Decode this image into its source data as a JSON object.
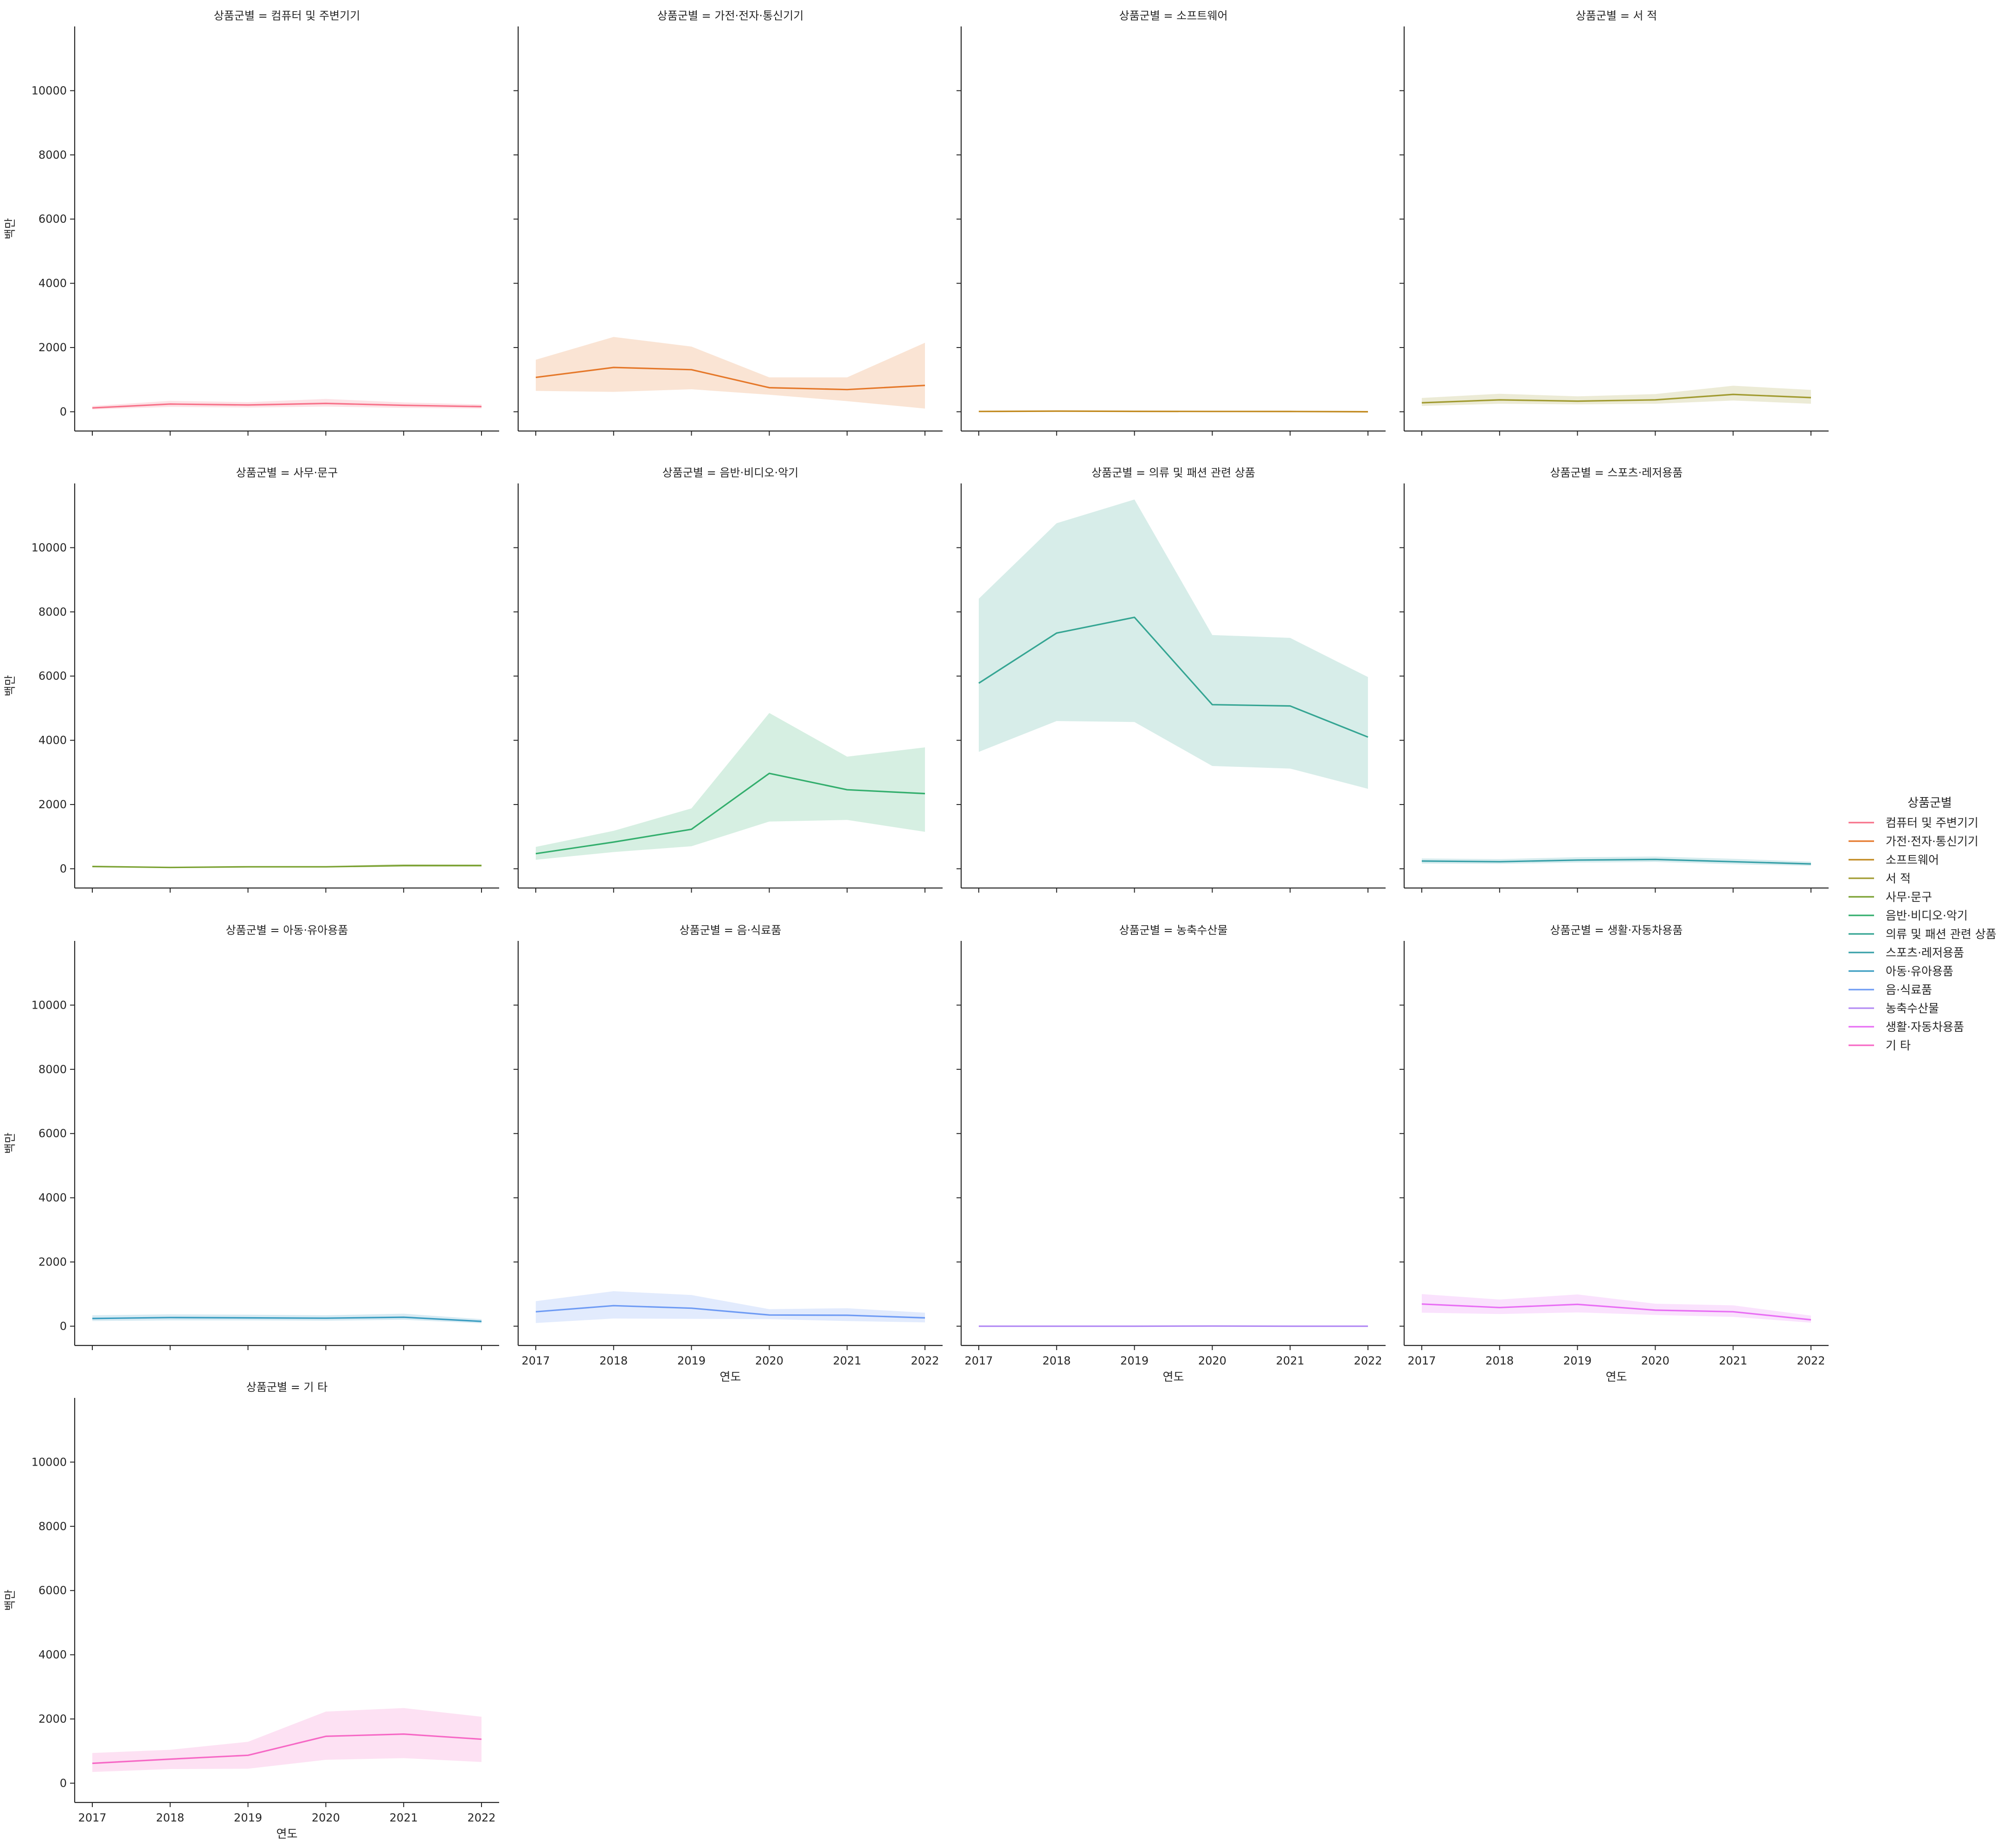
{
  "chart_data": {
    "type": "line",
    "facet_variable": "상품군별",
    "x": [
      2017,
      2018,
      2019,
      2020,
      2021,
      2022
    ],
    "xlabel": "연도",
    "ylabel": "백만",
    "ylim": [
      -600,
      12000
    ],
    "yticks": [
      0,
      2000,
      4000,
      6000,
      8000,
      10000
    ],
    "legend": {
      "title": "상품군별",
      "position": "right"
    },
    "facets": [
      {
        "title": "상품군별 = 컴퓨터 및 주변기기",
        "name": "컴퓨터 및 주변기기",
        "color": "#f77189",
        "values": [
          120,
          240,
          210,
          260,
          200,
          160
        ],
        "lower": [
          70,
          150,
          130,
          160,
          120,
          100
        ],
        "upper": [
          180,
          340,
          300,
          400,
          290,
          230
        ]
      },
      {
        "title": "상품군별 = 가전·전자·통신기기",
        "name": "가전·전자·통신기기",
        "color": "#e5782a",
        "values": [
          1070,
          1380,
          1310,
          750,
          690,
          820
        ],
        "lower": [
          650,
          620,
          700,
          530,
          330,
          100
        ],
        "upper": [
          1620,
          2330,
          2030,
          1070,
          1070,
          2150
        ]
      },
      {
        "title": "상품군별 = 소프트웨어",
        "name": "소프트웨어",
        "color": "#c1891e",
        "values": [
          10,
          20,
          12,
          10,
          8,
          0
        ],
        "lower": [
          4,
          10,
          6,
          5,
          3,
          -2
        ],
        "upper": [
          18,
          30,
          20,
          16,
          14,
          4
        ]
      },
      {
        "title": "상품군별 = 서 적",
        "name": "서 적",
        "color": "#a19b31",
        "values": [
          280,
          370,
          330,
          370,
          540,
          440
        ],
        "lower": [
          180,
          250,
          230,
          250,
          350,
          250
        ],
        "upper": [
          430,
          560,
          480,
          550,
          810,
          680
        ]
      },
      {
        "title": "상품군별 = 사무·문구",
        "name": "사무·문구",
        "color": "#7aa131",
        "values": [
          70,
          40,
          60,
          60,
          100,
          100
        ],
        "lower": [
          45,
          25,
          40,
          40,
          60,
          65
        ],
        "upper": [
          95,
          60,
          85,
          85,
          150,
          140
        ]
      },
      {
        "title": "상품군별 = 음반·비디오·악기",
        "name": "음반·비디오·악기",
        "color": "#33ae6d",
        "values": [
          470,
          830,
          1230,
          2970,
          2460,
          2340
        ],
        "lower": [
          280,
          520,
          700,
          1470,
          1520,
          1150
        ],
        "upper": [
          680,
          1180,
          1880,
          4850,
          3490,
          3780
        ]
      },
      {
        "title": "상품군별 = 의류 및 패션 관련 상품",
        "name": "의류 및 패션 관련 상품",
        "color": "#35a593",
        "values": [
          5780,
          7340,
          7830,
          5110,
          5070,
          4100
        ],
        "lower": [
          3640,
          4600,
          4570,
          3200,
          3120,
          2490
        ],
        "upper": [
          8410,
          10760,
          11500,
          7280,
          7190,
          5970
        ]
      },
      {
        "title": "상품군별 = 스포츠·레저용품",
        "name": "스포츠·레저용품",
        "color": "#37a0a8",
        "values": [
          240,
          220,
          270,
          290,
          220,
          150
        ],
        "lower": [
          160,
          150,
          190,
          210,
          140,
          90
        ],
        "upper": [
          320,
          300,
          360,
          380,
          310,
          220
        ]
      },
      {
        "title": "상품군별 = 아동·유아용품",
        "name": "아동·유아용품",
        "color": "#3a9dc1",
        "values": [
          240,
          270,
          260,
          250,
          280,
          150
        ],
        "lower": [
          160,
          180,
          180,
          170,
          200,
          90
        ],
        "upper": [
          340,
          370,
          360,
          340,
          390,
          220
        ]
      },
      {
        "title": "상품군별 = 음·식료품",
        "name": "음·식료품",
        "color": "#6e9bf4",
        "values": [
          450,
          640,
          560,
          350,
          340,
          260
        ],
        "lower": [
          100,
          240,
          230,
          220,
          160,
          120
        ],
        "upper": [
          780,
          1090,
          970,
          530,
          560,
          420
        ]
      },
      {
        "title": "상품군별 = 농축수산물",
        "name": "농축수산물",
        "color": "#b28af4",
        "values": [
          0,
          0,
          0,
          5,
          0,
          0
        ],
        "lower": [
          -3,
          -3,
          -3,
          2,
          -3,
          -3
        ],
        "upper": [
          3,
          3,
          3,
          8,
          3,
          3
        ]
      },
      {
        "title": "상품군별 = 생활·자동차용품",
        "name": "생활·자동차용품",
        "color": "#e86ef4",
        "values": [
          690,
          580,
          680,
          500,
          450,
          200
        ],
        "lower": [
          420,
          380,
          430,
          350,
          290,
          110
        ],
        "upper": [
          1000,
          830,
          990,
          700,
          650,
          330
        ]
      },
      {
        "title": "상품군별 = 기 타",
        "name": "기 타",
        "color": "#f668c5",
        "values": [
          620,
          750,
          870,
          1460,
          1530,
          1370
        ],
        "lower": [
          350,
          440,
          450,
          730,
          780,
          660
        ],
        "upper": [
          940,
          1040,
          1290,
          2230,
          2340,
          2070
        ]
      }
    ]
  }
}
